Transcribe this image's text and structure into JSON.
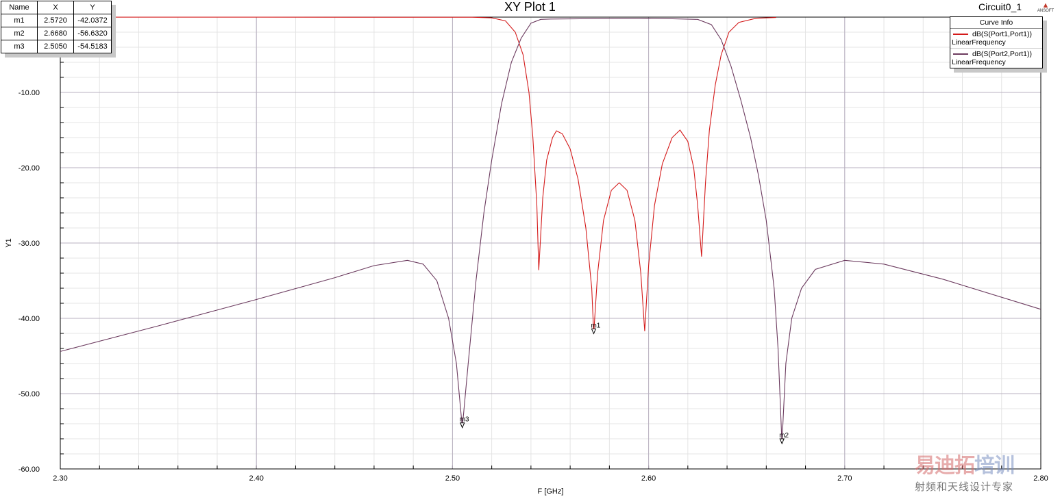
{
  "header": {
    "title": "XY Plot 1",
    "design": "Circuit0_1",
    "logo": "ANSOFT"
  },
  "marker_table": {
    "headers": [
      "Name",
      "X",
      "Y"
    ],
    "rows": [
      [
        "m1",
        "2.5720",
        "-42.0372"
      ],
      [
        "m2",
        "2.6680",
        "-56.6320"
      ],
      [
        "m3",
        "2.5050",
        "-54.5183"
      ]
    ]
  },
  "legend": {
    "title": "Curve Info",
    "items": [
      {
        "name": "dB(S(Port1,Port1))",
        "sweep": "LinearFrequency",
        "color": "#d41a1a"
      },
      {
        "name": "dB(S(Port2,Port1))",
        "sweep": "LinearFrequency",
        "color": "#6b3a5e"
      }
    ]
  },
  "watermark": {
    "line1a": "易迪拓",
    "line1b": "培训",
    "line2": "射频和天线设计专家"
  },
  "chart_data": {
    "type": "line",
    "title": "XY Plot 1",
    "xlabel": "F [GHz]",
    "ylabel": "Y1",
    "xlim": [
      2.3,
      2.8
    ],
    "ylim": [
      -60,
      0
    ],
    "xticks": [
      "2.30",
      "2.40",
      "2.50",
      "2.60",
      "2.70",
      "2.80"
    ],
    "yticks": [
      "-10.00",
      "-20.00",
      "-30.00",
      "-40.00",
      "-50.00",
      "-60.00"
    ],
    "grid": true,
    "legend": "top-right",
    "series": [
      {
        "name": "dB(S(Port1,Port1))",
        "color": "#d41a1a",
        "points": [
          [
            2.3,
            0
          ],
          [
            2.51,
            -0.02
          ],
          [
            2.52,
            -0.1
          ],
          [
            2.527,
            -0.5
          ],
          [
            2.532,
            -2
          ],
          [
            2.536,
            -5
          ],
          [
            2.539,
            -10
          ],
          [
            2.541,
            -16
          ],
          [
            2.543,
            -25
          ],
          [
            2.544,
            -33.6
          ],
          [
            2.546,
            -24
          ],
          [
            2.548,
            -19
          ],
          [
            2.551,
            -16
          ],
          [
            2.553,
            -15.1
          ],
          [
            2.556,
            -15.5
          ],
          [
            2.56,
            -17.5
          ],
          [
            2.564,
            -21.5
          ],
          [
            2.568,
            -28
          ],
          [
            2.571,
            -36
          ],
          [
            2.572,
            -42.04
          ],
          [
            2.574,
            -34
          ],
          [
            2.577,
            -27
          ],
          [
            2.581,
            -23
          ],
          [
            2.585,
            -22
          ],
          [
            2.589,
            -23
          ],
          [
            2.593,
            -27
          ],
          [
            2.596,
            -34
          ],
          [
            2.598,
            -41.7
          ],
          [
            2.6,
            -33
          ],
          [
            2.603,
            -25
          ],
          [
            2.607,
            -19.5
          ],
          [
            2.612,
            -16
          ],
          [
            2.616,
            -15
          ],
          [
            2.62,
            -16.5
          ],
          [
            2.623,
            -20
          ],
          [
            2.625,
            -25
          ],
          [
            2.627,
            -31.8
          ],
          [
            2.629,
            -22
          ],
          [
            2.631,
            -15
          ],
          [
            2.634,
            -9
          ],
          [
            2.637,
            -5
          ],
          [
            2.641,
            -2
          ],
          [
            2.646,
            -0.7
          ],
          [
            2.655,
            -0.15
          ],
          [
            2.665,
            -0.05
          ]
        ]
      },
      {
        "name": "dB(S(Port2,Port1))",
        "color": "#6b3a5e",
        "points": [
          [
            2.3,
            -44.4
          ],
          [
            2.35,
            -41.0
          ],
          [
            2.4,
            -37.5
          ],
          [
            2.44,
            -34.6
          ],
          [
            2.46,
            -33.0
          ],
          [
            2.477,
            -32.3
          ],
          [
            2.485,
            -32.8
          ],
          [
            2.492,
            -35
          ],
          [
            2.498,
            -40
          ],
          [
            2.502,
            -46
          ],
          [
            2.505,
            -54.52
          ],
          [
            2.508,
            -46
          ],
          [
            2.512,
            -35
          ],
          [
            2.516,
            -26
          ],
          [
            2.52,
            -19
          ],
          [
            2.525,
            -11.5
          ],
          [
            2.53,
            -6
          ],
          [
            2.535,
            -2.8
          ],
          [
            2.54,
            -0.8
          ],
          [
            2.545,
            -0.3
          ],
          [
            2.55,
            -0.25
          ],
          [
            2.6,
            -0.15
          ],
          [
            2.625,
            -0.3
          ],
          [
            2.632,
            -1
          ],
          [
            2.637,
            -3
          ],
          [
            2.642,
            -6.5
          ],
          [
            2.647,
            -11
          ],
          [
            2.652,
            -16
          ],
          [
            2.656,
            -21
          ],
          [
            2.66,
            -27
          ],
          [
            2.664,
            -36
          ],
          [
            2.666,
            -44
          ],
          [
            2.668,
            -56.63
          ],
          [
            2.67,
            -46
          ],
          [
            2.673,
            -40
          ],
          [
            2.678,
            -36
          ],
          [
            2.685,
            -33.5
          ],
          [
            2.7,
            -32.3
          ],
          [
            2.72,
            -32.8
          ],
          [
            2.75,
            -34.8
          ],
          [
            2.8,
            -38.8
          ]
        ]
      }
    ],
    "markers": [
      {
        "name": "m1",
        "x": 2.572,
        "y": -42.0372
      },
      {
        "name": "m2",
        "x": 2.668,
        "y": -56.632
      },
      {
        "name": "m3",
        "x": 2.505,
        "y": -54.5183
      }
    ]
  }
}
